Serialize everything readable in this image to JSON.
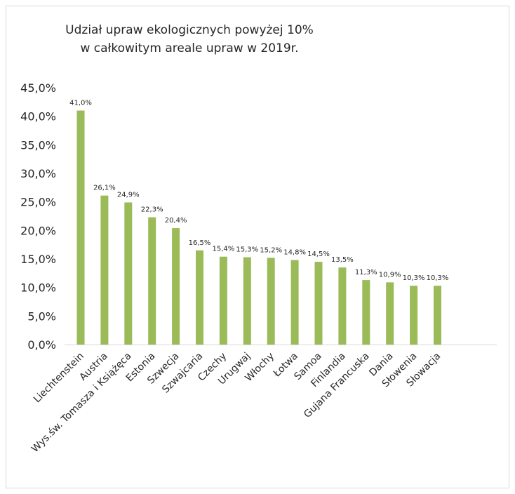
{
  "chart_data": {
    "type": "bar",
    "title_lines": [
      "Udział upraw ekologicznych powyżej 10%",
      "w całkowitym areale upraw w 2019r."
    ],
    "categories": [
      "Liechtenstein",
      "Austria",
      "Wys.św. Tomasza i Książęca",
      "Estonia",
      "Szwecja",
      "Szwajcaria",
      "Czechy",
      "Urugwaj",
      "Włochy",
      "Łotwa",
      "Samoa",
      "Finlandia",
      "Gujana Francuska",
      "Dania",
      "Słowenia",
      "Słowacja"
    ],
    "values": [
      41.0,
      26.1,
      24.9,
      22.3,
      20.4,
      16.5,
      15.4,
      15.3,
      15.2,
      14.8,
      14.5,
      13.5,
      11.3,
      10.9,
      10.3,
      10.3
    ],
    "data_labels": [
      "41,0%",
      "26,1%",
      "24,9%",
      "22,3%",
      "20,4%",
      "16,5%",
      "15,4%",
      "15,3%",
      "15,2%",
      "14,8%",
      "14,5%",
      "13,5%",
      "11,3%",
      "10,9%",
      "10,3%",
      "10,3%"
    ],
    "y_ticks": [
      "0,0%",
      "5,0%",
      "10,0%",
      "15,0%",
      "20,0%",
      "25,0%",
      "30,0%",
      "35,0%",
      "40,0%",
      "45,0%"
    ],
    "ylim": [
      0,
      45
    ],
    "ytick_step": 5,
    "grid": false,
    "legend": "none",
    "bar_color": "#9bbb59",
    "axis_color": "#d9d9d9"
  }
}
